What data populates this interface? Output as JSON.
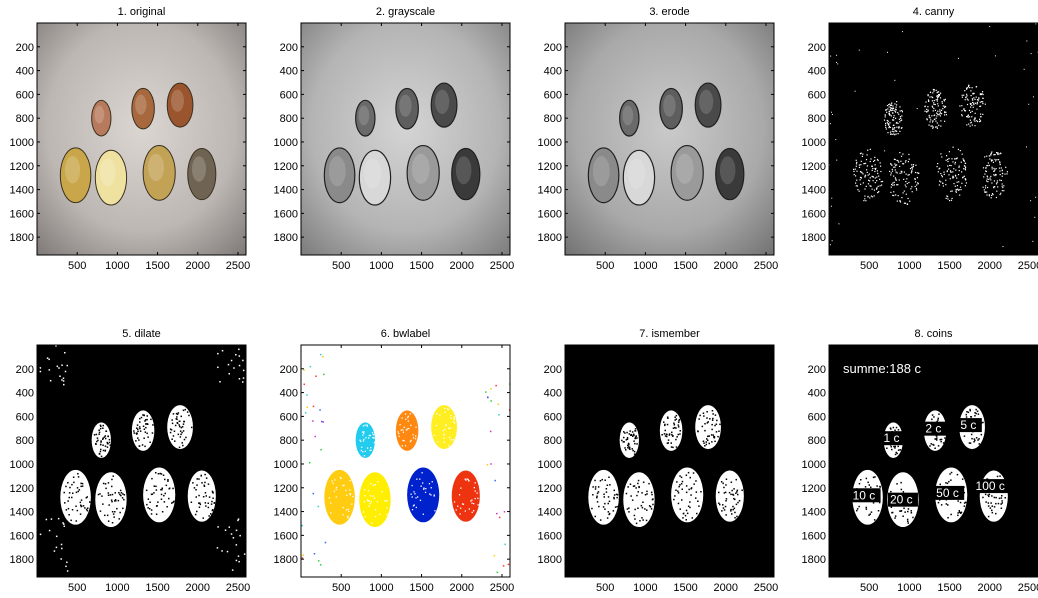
{
  "panels": [
    {
      "id": "original",
      "title": "1. original"
    },
    {
      "id": "grayscale",
      "title": "2. grayscale"
    },
    {
      "id": "erode",
      "title": "3. erode"
    },
    {
      "id": "canny",
      "title": "4. canny"
    },
    {
      "id": "dilate",
      "title": "5. dilate"
    },
    {
      "id": "bwlabel",
      "title": "6. bwlabel"
    },
    {
      "id": "ismember",
      "title": "7. ismember"
    },
    {
      "id": "coins",
      "title": "8. coins"
    }
  ],
  "axes": {
    "x_ticks": [
      "500",
      "1000",
      "1500",
      "2000",
      "2500"
    ],
    "y_ticks": [
      "200",
      "400",
      "600",
      "800",
      "1000",
      "1200",
      "1400",
      "1600",
      "1800"
    ]
  },
  "coins": {
    "summe": "summe:188 c",
    "labels": [
      "1 c",
      "2 c",
      "5 c",
      "10 c",
      "20 c",
      "50 c",
      "100 c"
    ]
  },
  "colors": {
    "bwlabel": [
      "#22ccee",
      "#ff8811",
      "#ffee22",
      "#ffcc11",
      "#ffee00",
      "#0022cc",
      "#ee3311"
    ],
    "original_coins": [
      "#b87a5c",
      "#a8683d",
      "#9a552e",
      "#c9a64a",
      "#efe2a0",
      "#c2a255",
      "#6f6454"
    ]
  }
}
